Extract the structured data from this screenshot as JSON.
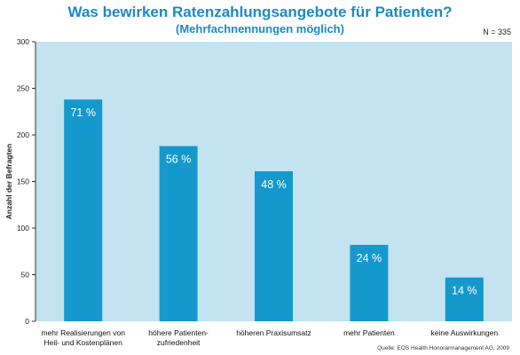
{
  "colors": {
    "title": "#1a8ac6",
    "plot_background": "#c3e3f1",
    "bar": "#1599cd",
    "bar_label": "#ffffff",
    "axis": "#333333"
  },
  "note": "N = 335",
  "source": "Quelle: EOS Health Honorarmanagement AG, 2009",
  "chart_data": {
    "type": "bar",
    "title": "Was bewirken Ratenzahlungsangebote für Patienten?",
    "subtitle": "(Mehrfachnennungen möglich)",
    "xlabel": "",
    "ylabel": "Anzahl der Befragten",
    "ylim": [
      0,
      300
    ],
    "yticks": [
      "0",
      "50",
      "100",
      "150",
      "200",
      "250",
      "300"
    ],
    "grid": false,
    "categories": [
      [
        "mehr Realisierungen von",
        "Heil- und Kostenplänen"
      ],
      [
        "höhere Patienten-",
        "zufriedenheit"
      ],
      [
        "höheren Praxisumsatz"
      ],
      [
        "mehr Patienten"
      ],
      [
        "keine Auswirkungen"
      ]
    ],
    "values": [
      238,
      188,
      161,
      82,
      47
    ],
    "data_labels": [
      "71 %",
      "56 %",
      "48 %",
      "24 %",
      "14 %"
    ]
  }
}
